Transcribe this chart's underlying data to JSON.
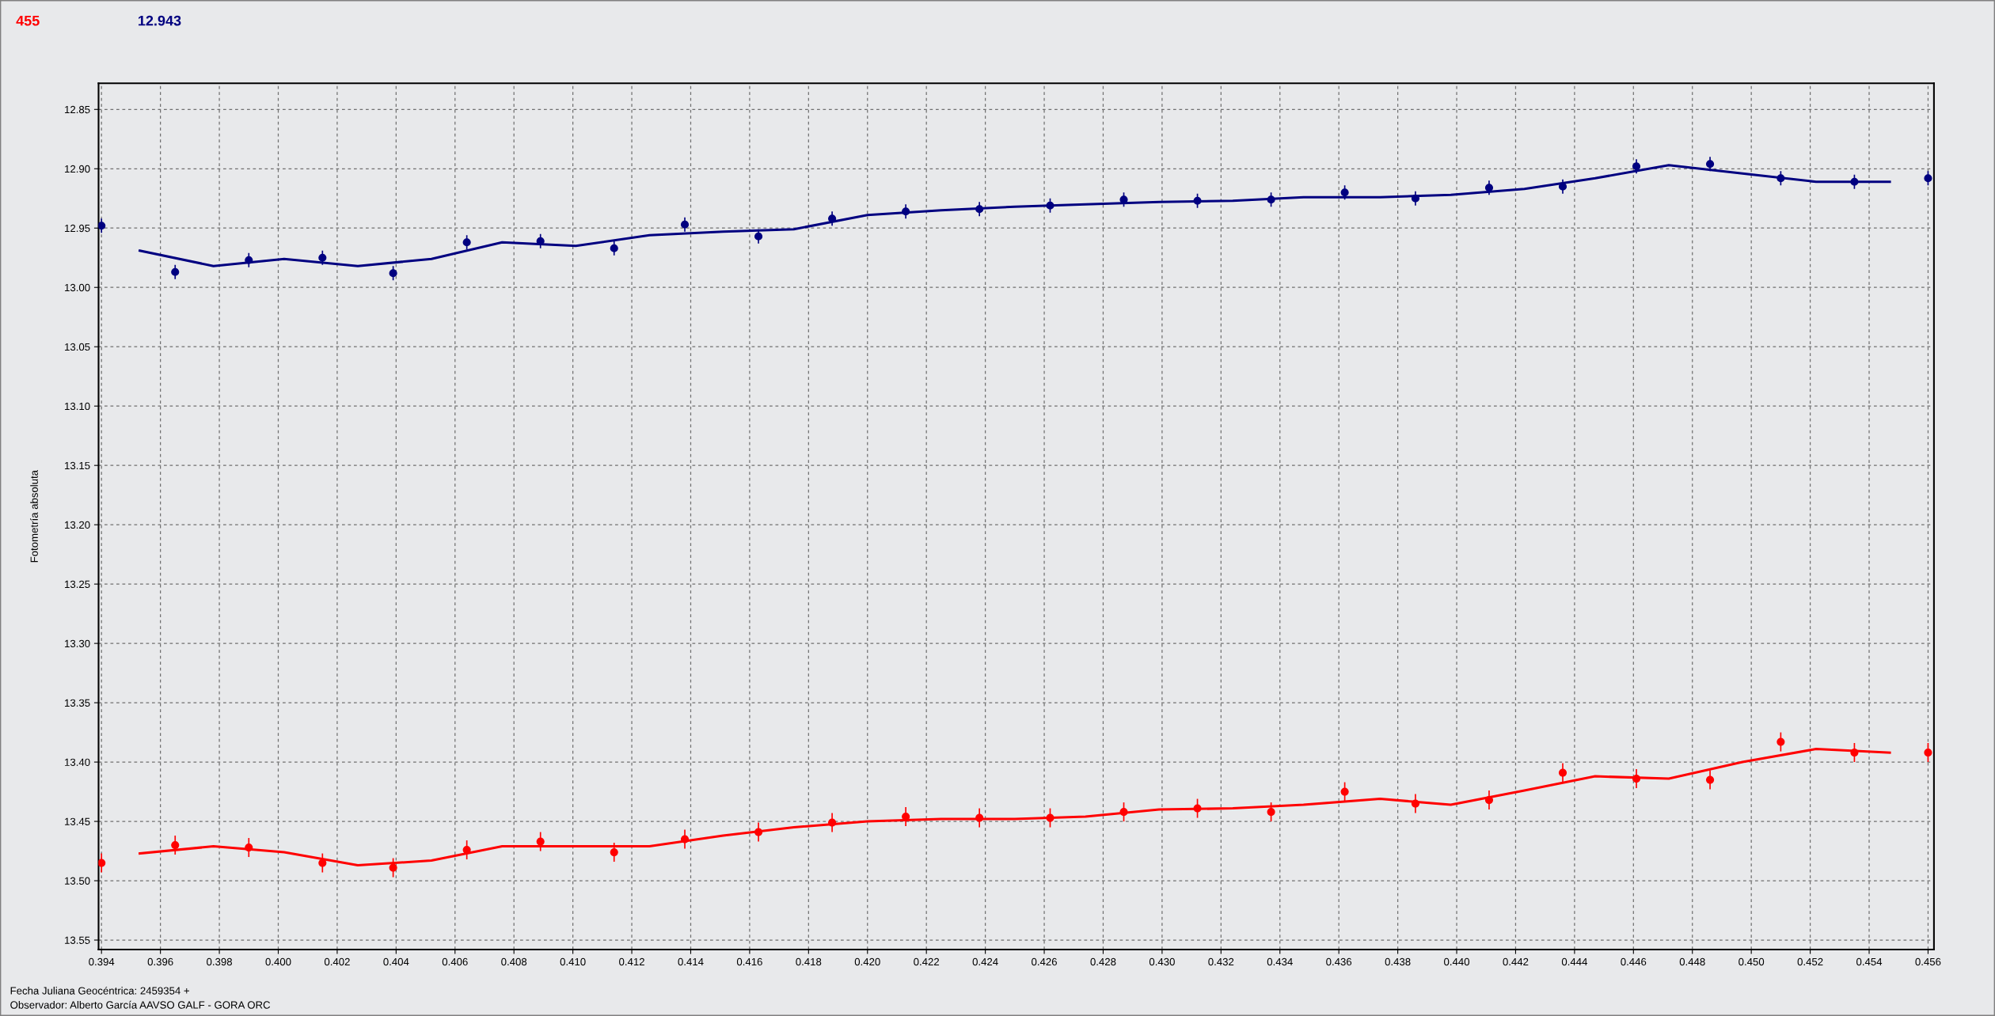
{
  "chart_data": {
    "type": "scatter",
    "ylabel": "Fotometría absoluta",
    "annotations": [
      "455",
      "12.943",
      "Fecha Juliana Geocéntrica: 2459354 +",
      "Observador: Alberto García AAVSO GALF - GORA ORC"
    ],
    "xlim": [
      0.3939,
      0.4562
    ],
    "ylim": [
      13.558,
      12.828
    ],
    "xticks": [
      0.394,
      0.396,
      0.398,
      {
        "value": 0.4,
        "label": "0.400"
      },
      0.402,
      0.404,
      0.406,
      0.408,
      {
        "value": 0.41,
        "label": "0.410"
      },
      0.412,
      0.414,
      0.416,
      0.418,
      {
        "value": 0.42,
        "label": "0.420"
      },
      0.422,
      0.424,
      0.426,
      0.428,
      {
        "value": 0.43,
        "label": "0.430"
      },
      0.432,
      0.434,
      0.436,
      0.438,
      {
        "value": 0.44,
        "label": "0.440"
      },
      0.442,
      0.444,
      0.446,
      0.448,
      {
        "value": 0.45,
        "label": "0.450"
      },
      0.452,
      0.454,
      0.456
    ],
    "yticks": [
      12.85,
      {
        "value": 12.9,
        "label": "12.90"
      },
      12.95,
      {
        "value": 13.0,
        "label": "13.00"
      },
      13.05,
      {
        "value": 13.1,
        "label": "13.10"
      },
      13.15,
      {
        "value": 13.2,
        "label": "13.20"
      },
      13.25,
      {
        "value": 13.3,
        "label": "13.30"
      },
      13.35,
      {
        "value": 13.4,
        "label": "13.40"
      },
      13.45,
      {
        "value": 13.5,
        "label": "13.50"
      },
      13.55
    ],
    "grid": true,
    "legend": false,
    "marker": "circle",
    "x": [
      0.394,
      0.3965,
      0.399,
      0.4015,
      0.4039,
      0.4064,
      0.4089,
      0.4114,
      0.4138,
      0.4163,
      0.4188,
      0.4213,
      0.4238,
      0.4262,
      0.4287,
      0.4312,
      0.4337,
      0.4362,
      0.4386,
      0.4411,
      0.4436,
      0.4461,
      0.4486,
      0.451,
      0.4535,
      0.456
    ],
    "series": [
      {
        "color": "#000080",
        "values": [
          12.948,
          12.987,
          12.977,
          12.975,
          12.988,
          12.962,
          12.961,
          12.967,
          12.947,
          12.957,
          12.942,
          12.936,
          12.934,
          12.931,
          12.926,
          12.927,
          12.926,
          12.92,
          12.925,
          12.916,
          12.915,
          12.898,
          12.896,
          12.908,
          12.911,
          12.908
        ],
        "errors": [
          0.006,
          0.006,
          0.006,
          0.006,
          0.006,
          0.006,
          0.006,
          0.006,
          0.006,
          0.006,
          0.006,
          0.006,
          0.006,
          0.006,
          0.006,
          0.006,
          0.006,
          0.006,
          0.006,
          0.006,
          0.006,
          0.006,
          0.006,
          0.006,
          0.006,
          0.006
        ]
      },
      {
        "type": "line",
        "marker": "none",
        "color": "#000080",
        "x": [
          0.3953,
          0.3978,
          0.4002,
          0.4027,
          0.4052,
          0.4076,
          0.4101,
          0.4126,
          0.4151,
          0.4175,
          0.42,
          0.4225,
          0.425,
          0.4274,
          0.4299,
          0.4324,
          0.4348,
          0.4374,
          0.4398,
          0.4423,
          0.4447,
          0.4472,
          0.4497,
          0.4522,
          0.4547
        ],
        "values": [
          12.969,
          12.982,
          12.976,
          12.982,
          12.976,
          12.962,
          12.965,
          12.956,
          12.953,
          12.951,
          12.939,
          12.935,
          12.932,
          12.93,
          12.928,
          12.927,
          12.924,
          12.924,
          12.922,
          12.917,
          12.908,
          12.897,
          12.904,
          12.911,
          12.911
        ]
      },
      {
        "color": "#ff0000",
        "values": [
          13.485,
          13.47,
          13.472,
          13.485,
          13.489,
          13.474,
          13.467,
          13.476,
          13.465,
          13.459,
          13.451,
          13.446,
          13.447,
          13.447,
          13.442,
          13.439,
          13.442,
          13.425,
          13.435,
          13.432,
          13.409,
          13.414,
          13.415,
          13.383,
          13.392,
          13.392
        ],
        "errors": [
          0.008,
          0.008,
          0.008,
          0.008,
          0.008,
          0.008,
          0.008,
          0.008,
          0.008,
          0.008,
          0.008,
          0.008,
          0.008,
          0.008,
          0.008,
          0.008,
          0.008,
          0.008,
          0.008,
          0.008,
          0.008,
          0.008,
          0.008,
          0.008,
          0.008,
          0.008
        ]
      },
      {
        "type": "line",
        "marker": "none",
        "color": "#ff0000",
        "x": [
          0.3953,
          0.3978,
          0.4002,
          0.4027,
          0.4052,
          0.4076,
          0.4101,
          0.4126,
          0.4151,
          0.4175,
          0.42,
          0.4225,
          0.425,
          0.4274,
          0.4299,
          0.4324,
          0.4348,
          0.4374,
          0.4398,
          0.4423,
          0.4447,
          0.4472,
          0.4497,
          0.4522,
          0.4547
        ],
        "values": [
          13.477,
          13.471,
          13.476,
          13.487,
          13.483,
          13.471,
          13.471,
          13.471,
          13.462,
          13.455,
          13.45,
          13.448,
          13.448,
          13.446,
          13.44,
          13.439,
          13.436,
          13.431,
          13.436,
          13.424,
          13.412,
          13.414,
          13.4,
          13.389,
          13.392
        ]
      }
    ]
  }
}
